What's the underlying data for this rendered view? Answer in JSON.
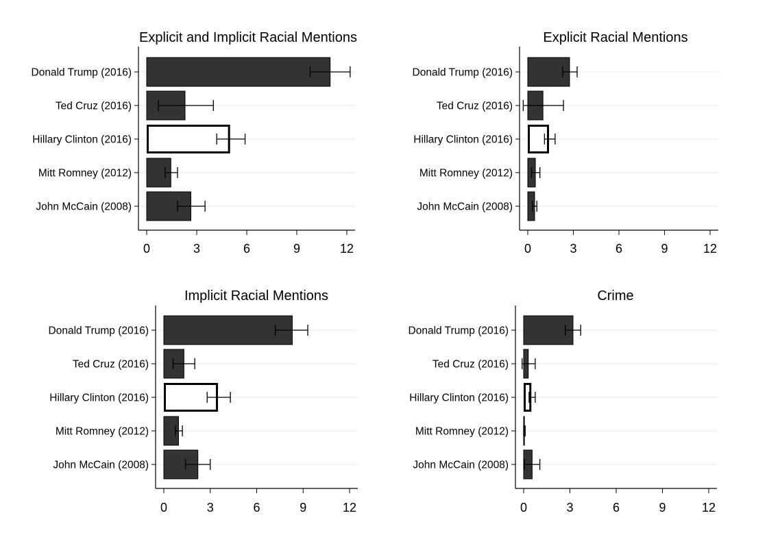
{
  "chart_data": [
    {
      "type": "bar",
      "orientation": "horizontal",
      "title": "Explicit and Implicit Racial Mentions",
      "categories": [
        "Donald Trump (2016)",
        "Ted Cruz (2016)",
        "Hillary Clinton (2016)",
        "Mitt Romney (2012)",
        "John McCain (2008)"
      ],
      "values": [
        11.0,
        2.3,
        5.0,
        1.45,
        2.65
      ],
      "error_low": [
        9.8,
        0.7,
        4.2,
        1.1,
        1.85
      ],
      "error_high": [
        12.2,
        4.0,
        5.9,
        1.85,
        3.5
      ],
      "xlim": [
        0,
        12
      ],
      "xticks": [
        "0",
        "3",
        "6",
        "9",
        "12"
      ],
      "grid": true,
      "highlight": "Hillary Clinton (2016)"
    },
    {
      "type": "bar",
      "orientation": "horizontal",
      "title": "Explicit Racial Mentions",
      "categories": [
        "Donald Trump (2016)",
        "Ted Cruz (2016)",
        "Hillary Clinton (2016)",
        "Mitt Romney (2012)",
        "John McCain (2008)"
      ],
      "values": [
        2.75,
        1.0,
        1.4,
        0.5,
        0.45
      ],
      "error_low": [
        2.3,
        -0.3,
        1.1,
        0.25,
        0.3
      ],
      "error_high": [
        3.25,
        2.35,
        1.8,
        0.8,
        0.6
      ],
      "xlim": [
        0,
        12
      ],
      "xticks": [
        "0",
        "3",
        "6",
        "9",
        "12"
      ],
      "grid": true,
      "highlight": "Hillary Clinton (2016)"
    },
    {
      "type": "bar",
      "orientation": "horizontal",
      "title": "Implicit Racial Mentions",
      "categories": [
        "Donald Trump (2016)",
        "Ted Cruz (2016)",
        "Hillary Clinton (2016)",
        "Mitt Romney (2012)",
        "John McCain (2008)"
      ],
      "values": [
        8.3,
        1.3,
        3.5,
        0.95,
        2.2
      ],
      "error_low": [
        7.2,
        0.6,
        2.8,
        0.75,
        1.4
      ],
      "error_high": [
        9.3,
        2.0,
        4.3,
        1.2,
        3.0
      ],
      "xlim": [
        0,
        12
      ],
      "xticks": [
        "0",
        "3",
        "6",
        "9",
        "12"
      ],
      "grid": true,
      "highlight": "Hillary Clinton (2016)"
    },
    {
      "type": "bar",
      "orientation": "horizontal",
      "title": "Crime",
      "categories": [
        "Donald Trump (2016)",
        "Ted Cruz (2016)",
        "Hillary Clinton (2016)",
        "Mitt Romney (2012)",
        "John McCain (2008)"
      ],
      "values": [
        3.2,
        0.3,
        0.5,
        0.05,
        0.55
      ],
      "error_low": [
        2.7,
        -0.1,
        0.35,
        0.0,
        0.05
      ],
      "error_high": [
        3.7,
        0.75,
        0.75,
        0.1,
        1.05
      ],
      "xlim": [
        0,
        12
      ],
      "xticks": [
        "0",
        "3",
        "6",
        "9",
        "12"
      ],
      "grid": true,
      "highlight": "Hillary Clinton (2016)"
    }
  ]
}
